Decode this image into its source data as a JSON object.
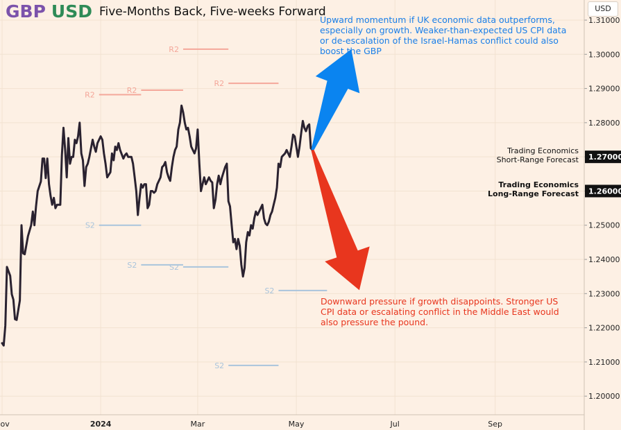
{
  "header": {
    "base": "GBP",
    "quote": "USD",
    "subtitle": "Five-Months Back, Five-weeks Forward",
    "currency_button": "USD"
  },
  "annotations": {
    "upside": "Upward momentum if UK economic data outperforms, especially on growth. Weaker-than-expected US CPI data or de-escalation of the Israel-Hamas conflict could also boost the GBP",
    "downside": "Downward pressure if growth disappoints. Stronger US CPI data or escalating conflict in the Middle East would also pressure the pound."
  },
  "forecasts": {
    "short_range": {
      "line1": "Trading Economics",
      "line2": "Short-Range Forecast",
      "value": "1.27000"
    },
    "long_range": {
      "line1": "Trading Economics",
      "line2": "Long-Range Forecast",
      "value": "1.26000"
    }
  },
  "colors": {
    "background": "#fdf0e4",
    "price_line": "#2a2230",
    "resistance": "#f4a79a",
    "support": "#a9c4dc",
    "up_arrow": "#0a84f0",
    "down_arrow": "#e8361e",
    "title_base": "#7b52ab",
    "title_quote": "#2e8b57"
  },
  "chart_data": {
    "type": "line",
    "x_ticks": [
      {
        "label": "Nov",
        "date": "2023-11-01",
        "bold": false
      },
      {
        "label": "2024",
        "date": "2024-01-01",
        "bold": true
      },
      {
        "label": "Mar",
        "date": "2024-03-01",
        "bold": false
      },
      {
        "label": "May",
        "date": "2024-05-01",
        "bold": false
      },
      {
        "label": "Jul",
        "date": "2024-07-01",
        "bold": false
      },
      {
        "label": "Sep",
        "date": "2024-09-01",
        "bold": false
      }
    ],
    "y_ticks": [
      "1.20000",
      "1.21000",
      "1.22000",
      "1.23000",
      "1.24000",
      "1.25000",
      "1.26000",
      "1.27000",
      "1.28000",
      "1.29000",
      "1.30000",
      "1.31000"
    ],
    "ylim": [
      1.195,
      1.315
    ],
    "series": [
      {
        "points": [
          [
            "2023-11-01",
            1.2155
          ],
          [
            "2023-11-02",
            1.2148
          ],
          [
            "2023-11-03",
            1.2207
          ],
          [
            "2023-11-04",
            1.2378
          ],
          [
            "2023-11-06",
            1.2352
          ],
          [
            "2023-11-07",
            1.2298
          ],
          [
            "2023-11-08",
            1.2282
          ],
          [
            "2023-11-09",
            1.2225
          ],
          [
            "2023-11-10",
            1.2223
          ],
          [
            "2023-11-12",
            1.228
          ],
          [
            "2023-11-13",
            1.25
          ],
          [
            "2023-11-14",
            1.2418
          ],
          [
            "2023-11-15",
            1.2415
          ],
          [
            "2023-11-17",
            1.2468
          ],
          [
            "2023-11-19",
            1.25
          ],
          [
            "2023-11-20",
            1.254
          ],
          [
            "2023-11-21",
            1.25
          ],
          [
            "2023-11-22",
            1.2555
          ],
          [
            "2023-11-23",
            1.26
          ],
          [
            "2023-11-25",
            1.2628
          ],
          [
            "2023-11-26",
            1.2695
          ],
          [
            "2023-11-27",
            1.2695
          ],
          [
            "2023-11-28",
            1.2638
          ],
          [
            "2023-11-29",
            1.2695
          ],
          [
            "2023-11-30",
            1.262
          ],
          [
            "2023-12-01",
            1.2586
          ],
          [
            "2023-12-02",
            1.256
          ],
          [
            "2023-12-03",
            1.258
          ],
          [
            "2023-12-04",
            1.255
          ],
          [
            "2023-12-05",
            1.256
          ],
          [
            "2023-12-07",
            1.256
          ],
          [
            "2023-12-08",
            1.2705
          ],
          [
            "2023-12-09",
            1.2785
          ],
          [
            "2023-12-10",
            1.272
          ],
          [
            "2023-12-11",
            1.264
          ],
          [
            "2023-12-12",
            1.2755
          ],
          [
            "2023-12-13",
            1.268
          ],
          [
            "2023-12-14",
            1.27
          ],
          [
            "2023-12-15",
            1.27
          ],
          [
            "2023-12-16",
            1.275
          ],
          [
            "2023-12-17",
            1.274
          ],
          [
            "2023-12-18",
            1.276
          ],
          [
            "2023-12-19",
            1.28
          ],
          [
            "2023-12-20",
            1.271
          ],
          [
            "2023-12-21",
            1.269
          ],
          [
            "2023-12-22",
            1.2615
          ],
          [
            "2023-12-23",
            1.267
          ],
          [
            "2023-12-24",
            1.268
          ],
          [
            "2023-12-25",
            1.27
          ],
          [
            "2023-12-27",
            1.275
          ],
          [
            "2023-12-28",
            1.273
          ],
          [
            "2023-12-29",
            1.2715
          ],
          [
            "2023-12-30",
            1.274
          ],
          [
            "2024-01-01",
            1.276
          ],
          [
            "2024-01-02",
            1.275
          ],
          [
            "2024-01-03",
            1.271
          ],
          [
            "2024-01-04",
            1.268
          ],
          [
            "2024-01-05",
            1.264
          ],
          [
            "2024-01-07",
            1.2655
          ],
          [
            "2024-01-08",
            1.271
          ],
          [
            "2024-01-09",
            1.269
          ],
          [
            "2024-01-10",
            1.273
          ],
          [
            "2024-01-11",
            1.272
          ],
          [
            "2024-01-12",
            1.274
          ],
          [
            "2024-01-13",
            1.272
          ],
          [
            "2024-01-15",
            1.2695
          ],
          [
            "2024-01-16",
            1.2705
          ],
          [
            "2024-01-17",
            1.271
          ],
          [
            "2024-01-18",
            1.27
          ],
          [
            "2024-01-19",
            1.27
          ],
          [
            "2024-01-20",
            1.27
          ],
          [
            "2024-01-21",
            1.268
          ],
          [
            "2024-01-22",
            1.264
          ],
          [
            "2024-01-23",
            1.26
          ],
          [
            "2024-01-24",
            1.253
          ],
          [
            "2024-01-25",
            1.258
          ],
          [
            "2024-01-26",
            1.262
          ],
          [
            "2024-01-27",
            1.261
          ],
          [
            "2024-01-28",
            1.262
          ],
          [
            "2024-01-29",
            1.262
          ],
          [
            "2024-01-30",
            1.255
          ],
          [
            "2024-01-31",
            1.256
          ],
          [
            "2024-02-01",
            1.26
          ],
          [
            "2024-02-02",
            1.26
          ],
          [
            "2024-02-03",
            1.2595
          ],
          [
            "2024-02-04",
            1.26
          ],
          [
            "2024-02-05",
            1.262
          ],
          [
            "2024-02-06",
            1.263
          ],
          [
            "2024-02-07",
            1.264
          ],
          [
            "2024-02-08",
            1.267
          ],
          [
            "2024-02-09",
            1.2675
          ],
          [
            "2024-02-10",
            1.2685
          ],
          [
            "2024-02-11",
            1.2655
          ],
          [
            "2024-02-12",
            1.264
          ],
          [
            "2024-02-13",
            1.263
          ],
          [
            "2024-02-14",
            1.267
          ],
          [
            "2024-02-15",
            1.27
          ],
          [
            "2024-02-16",
            1.272
          ],
          [
            "2024-02-17",
            1.273
          ],
          [
            "2024-02-18",
            1.278
          ],
          [
            "2024-02-19",
            1.28
          ],
          [
            "2024-02-20",
            1.285
          ],
          [
            "2024-02-21",
            1.283
          ],
          [
            "2024-02-22",
            1.28
          ],
          [
            "2024-02-23",
            1.278
          ],
          [
            "2024-02-24",
            1.2785
          ],
          [
            "2024-02-25",
            1.276
          ],
          [
            "2024-02-26",
            1.273
          ],
          [
            "2024-02-27",
            1.272
          ],
          [
            "2024-02-28",
            1.271
          ],
          [
            "2024-02-29",
            1.2725
          ],
          [
            "2024-03-01",
            1.278
          ],
          [
            "2024-03-02",
            1.268
          ],
          [
            "2024-03-03",
            1.26
          ],
          [
            "2024-03-04",
            1.262
          ],
          [
            "2024-03-05",
            1.264
          ],
          [
            "2024-03-06",
            1.262
          ],
          [
            "2024-03-07",
            1.263
          ],
          [
            "2024-03-08",
            1.264
          ],
          [
            "2024-03-09",
            1.263
          ],
          [
            "2024-03-10",
            1.2625
          ],
          [
            "2024-03-11",
            1.255
          ],
          [
            "2024-03-12",
            1.2575
          ],
          [
            "2024-03-13",
            1.262
          ],
          [
            "2024-03-14",
            1.2645
          ],
          [
            "2024-03-15",
            1.262
          ],
          [
            "2024-03-16",
            1.264
          ],
          [
            "2024-03-17",
            1.2655
          ],
          [
            "2024-03-18",
            1.267
          ],
          [
            "2024-03-19",
            1.268
          ],
          [
            "2024-03-20",
            1.257
          ],
          [
            "2024-03-21",
            1.2555
          ],
          [
            "2024-03-22",
            1.25
          ],
          [
            "2024-03-23",
            1.245
          ],
          [
            "2024-03-24",
            1.246
          ],
          [
            "2024-03-25",
            1.243
          ],
          [
            "2024-03-26",
            1.246
          ],
          [
            "2024-03-27",
            1.244
          ],
          [
            "2024-03-28",
            1.2385
          ],
          [
            "2024-03-29",
            1.235
          ],
          [
            "2024-03-30",
            1.2375
          ],
          [
            "2024-03-31",
            1.245
          ],
          [
            "2024-04-01",
            1.248
          ],
          [
            "2024-04-02",
            1.247
          ],
          [
            "2024-04-03",
            1.25
          ],
          [
            "2024-04-04",
            1.249
          ],
          [
            "2024-04-05",
            1.252
          ],
          [
            "2024-04-06",
            1.254
          ],
          [
            "2024-04-07",
            1.253
          ],
          [
            "2024-04-08",
            1.254
          ],
          [
            "2024-04-09",
            1.255
          ],
          [
            "2024-04-10",
            1.256
          ],
          [
            "2024-04-11",
            1.252
          ],
          [
            "2024-04-12",
            1.2505
          ],
          [
            "2024-04-13",
            1.25
          ],
          [
            "2024-04-14",
            1.251
          ],
          [
            "2024-04-15",
            1.253
          ],
          [
            "2024-04-16",
            1.254
          ],
          [
            "2024-04-17",
            1.256
          ],
          [
            "2024-04-18",
            1.258
          ],
          [
            "2024-04-19",
            1.261
          ],
          [
            "2024-04-20",
            1.268
          ],
          [
            "2024-04-21",
            1.267
          ],
          [
            "2024-04-22",
            1.27
          ],
          [
            "2024-04-23",
            1.2705
          ],
          [
            "2024-04-24",
            1.271
          ],
          [
            "2024-04-25",
            1.272
          ],
          [
            "2024-04-26",
            1.271
          ],
          [
            "2024-04-27",
            1.27
          ],
          [
            "2024-04-28",
            1.273
          ],
          [
            "2024-04-29",
            1.2765
          ],
          [
            "2024-04-30",
            1.276
          ],
          [
            "2024-05-01",
            1.273
          ],
          [
            "2024-05-02",
            1.27
          ],
          [
            "2024-05-03",
            1.273
          ],
          [
            "2024-05-04",
            1.277
          ],
          [
            "2024-05-05",
            1.2805
          ],
          [
            "2024-05-06",
            1.2785
          ],
          [
            "2024-05-07",
            1.2775
          ],
          [
            "2024-05-08",
            1.279
          ],
          [
            "2024-05-09",
            1.2795
          ],
          [
            "2024-05-10",
            1.2725
          ],
          [
            "2024-05-11",
            1.272
          ]
        ]
      }
    ],
    "levels": [
      {
        "label": "R2",
        "type": "resistance",
        "value": 1.2882,
        "x_start": "2023-12-31",
        "x_end": "2024-01-26"
      },
      {
        "label": "R2",
        "type": "resistance",
        "value": 1.2895,
        "x_start": "2024-01-26",
        "x_end": "2024-02-21"
      },
      {
        "label": "R2",
        "type": "resistance",
        "value": 1.3015,
        "x_start": "2024-02-21",
        "x_end": "2024-03-20"
      },
      {
        "label": "R2",
        "type": "resistance",
        "value": 1.2915,
        "x_start": "2024-03-20",
        "x_end": "2024-04-20"
      },
      {
        "label": "S2",
        "type": "support",
        "value": 1.25,
        "x_start": "2023-12-31",
        "x_end": "2024-01-26"
      },
      {
        "label": "S2",
        "type": "support",
        "value": 1.2384,
        "x_start": "2024-01-26",
        "x_end": "2024-02-21"
      },
      {
        "label": "S2",
        "type": "support",
        "value": 1.2378,
        "x_start": "2024-02-21",
        "x_end": "2024-03-20"
      },
      {
        "label": "S2",
        "type": "support",
        "value": 1.209,
        "x_start": "2024-03-20",
        "x_end": "2024-04-20"
      },
      {
        "label": "S2",
        "type": "support",
        "value": 1.2309,
        "x_start": "2024-04-20",
        "x_end": "2024-05-20"
      }
    ],
    "forecast_arrows": [
      {
        "direction": "up",
        "from": [
          "2024-05-11",
          1.272
        ],
        "to": [
          "2024-06-04",
          1.3015
        ]
      },
      {
        "direction": "down",
        "from": [
          "2024-05-11",
          1.272
        ],
        "to": [
          "2024-06-09",
          1.231
        ]
      }
    ]
  }
}
